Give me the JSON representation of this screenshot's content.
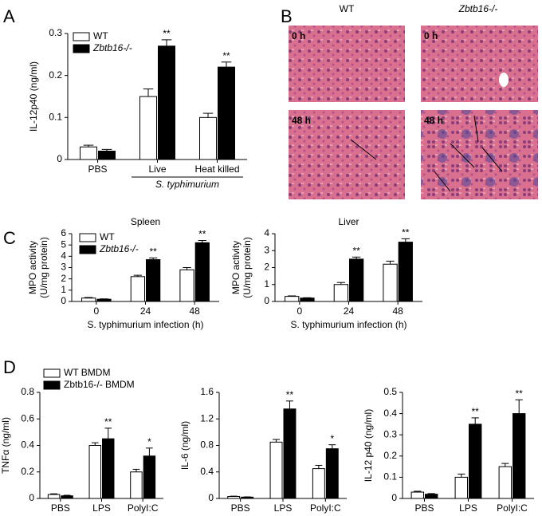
{
  "panel_labels": [
    "A",
    "B",
    "C",
    "D"
  ],
  "panel_b": {
    "columns": [
      "WT",
      "Zbtb16-/-"
    ],
    "rows": [
      [
        "0 h",
        "0 h"
      ],
      [
        "48 h",
        "48 h"
      ]
    ]
  },
  "chart_data": [
    {
      "type": "bar",
      "ylabel": "IL-12p40 (ng/ml)",
      "xlabel": "S. typhimurium",
      "categories": [
        "PBS",
        "Live",
        "Heat killed"
      ],
      "ylim": [
        0,
        0.3
      ],
      "yticks": [
        0,
        0.1,
        0.2,
        0.3
      ],
      "legend": true,
      "series": [
        {
          "name": "WT",
          "color": "#ffffff",
          "values": [
            0.03,
            0.15,
            0.1
          ],
          "errors": [
            0.004,
            0.018,
            0.01
          ]
        },
        {
          "name": "Zbtb16-/-",
          "color": "#000000",
          "values": [
            0.02,
            0.27,
            0.22
          ],
          "errors": [
            0.004,
            0.015,
            0.012
          ],
          "stars": [
            null,
            "**",
            "**"
          ]
        }
      ]
    },
    {
      "type": "bar",
      "title": "Spleen",
      "ylabel": [
        "MPO activity",
        "(U/mg protein)"
      ],
      "xlabel": "S. typhimurium infection (h)",
      "categories": [
        "0",
        "24",
        "48"
      ],
      "ylim": [
        0,
        6
      ],
      "yticks": [
        0,
        1,
        2,
        3,
        4,
        5,
        6
      ],
      "legend": true,
      "series": [
        {
          "name": "WT",
          "color": "#ffffff",
          "values": [
            0.3,
            2.2,
            2.8
          ],
          "errors": [
            0.05,
            0.12,
            0.2
          ]
        },
        {
          "name": "Zbtb16-/-",
          "color": "#000000",
          "values": [
            0.2,
            3.7,
            5.2
          ],
          "errors": [
            0.03,
            0.15,
            0.2
          ],
          "stars": [
            null,
            "**",
            "**"
          ]
        }
      ]
    },
    {
      "type": "bar",
      "title": "Liver",
      "ylabel": [
        "MPO activity",
        "(U/mg protein)"
      ],
      "xlabel": "S. typhimurium infection (h)",
      "categories": [
        "0",
        "24",
        "48"
      ],
      "ylim": [
        0,
        4
      ],
      "yticks": [
        0,
        1,
        2,
        3,
        4
      ],
      "legend": false,
      "series": [
        {
          "name": "WT",
          "color": "#ffffff",
          "values": [
            0.3,
            1.0,
            2.2
          ],
          "errors": [
            0.03,
            0.12,
            0.18
          ]
        },
        {
          "name": "Zbtb16-/-",
          "color": "#000000",
          "values": [
            0.2,
            2.5,
            3.5
          ],
          "errors": [
            0.02,
            0.12,
            0.2
          ],
          "stars": [
            null,
            "**",
            "**"
          ]
        }
      ]
    },
    {
      "type": "bar",
      "ylabel": "TNFα (ng/ml)",
      "categories": [
        "PBS",
        "LPS",
        "PolyI:C"
      ],
      "ylim": [
        0,
        0.8
      ],
      "yticks": [
        0,
        0.2,
        0.4,
        0.6,
        0.8
      ],
      "legend": true,
      "series": [
        {
          "name": "WT BMDM",
          "color": "#ffffff",
          "values": [
            0.03,
            0.4,
            0.2
          ],
          "errors": [
            0.005,
            0.02,
            0.02
          ]
        },
        {
          "name": "Zbtb16-/- BMDM",
          "color": "#000000",
          "values": [
            0.02,
            0.45,
            0.32
          ],
          "errors": [
            0.004,
            0.08,
            0.06
          ],
          "stars": [
            null,
            "**",
            "*"
          ]
        }
      ]
    },
    {
      "type": "bar",
      "ylabel": "IL-6 (ng/ml)",
      "categories": [
        "PBS",
        "LPS",
        "PolyI:C"
      ],
      "ylim": [
        0,
        1.6
      ],
      "yticks": [
        0,
        0.4,
        0.8,
        1.2,
        1.6
      ],
      "legend": false,
      "series": [
        {
          "name": "WT BMDM",
          "color": "#ffffff",
          "values": [
            0.03,
            0.85,
            0.45
          ],
          "errors": [
            0.005,
            0.04,
            0.05
          ]
        },
        {
          "name": "Zbtb16-/- BMDM",
          "color": "#000000",
          "values": [
            0.02,
            1.35,
            0.75
          ],
          "errors": [
            0.004,
            0.12,
            0.06
          ],
          "stars": [
            null,
            "**",
            "*"
          ]
        }
      ]
    },
    {
      "type": "bar",
      "ylabel": "IL-12 p40 (ng/ml)",
      "categories": [
        "PBS",
        "LPS",
        "PolyI:C"
      ],
      "ylim": [
        0,
        0.5
      ],
      "yticks": [
        0,
        0.1,
        0.2,
        0.3,
        0.4,
        0.5
      ],
      "legend": false,
      "series": [
        {
          "name": "WT BMDM",
          "color": "#ffffff",
          "values": [
            0.03,
            0.1,
            0.15
          ],
          "errors": [
            0.004,
            0.015,
            0.015
          ]
        },
        {
          "name": "Zbtb16-/- BMDM",
          "color": "#000000",
          "values": [
            0.02,
            0.35,
            0.4
          ],
          "errors": [
            0.003,
            0.03,
            0.065
          ],
          "stars": [
            null,
            "**",
            "**"
          ]
        }
      ]
    }
  ]
}
